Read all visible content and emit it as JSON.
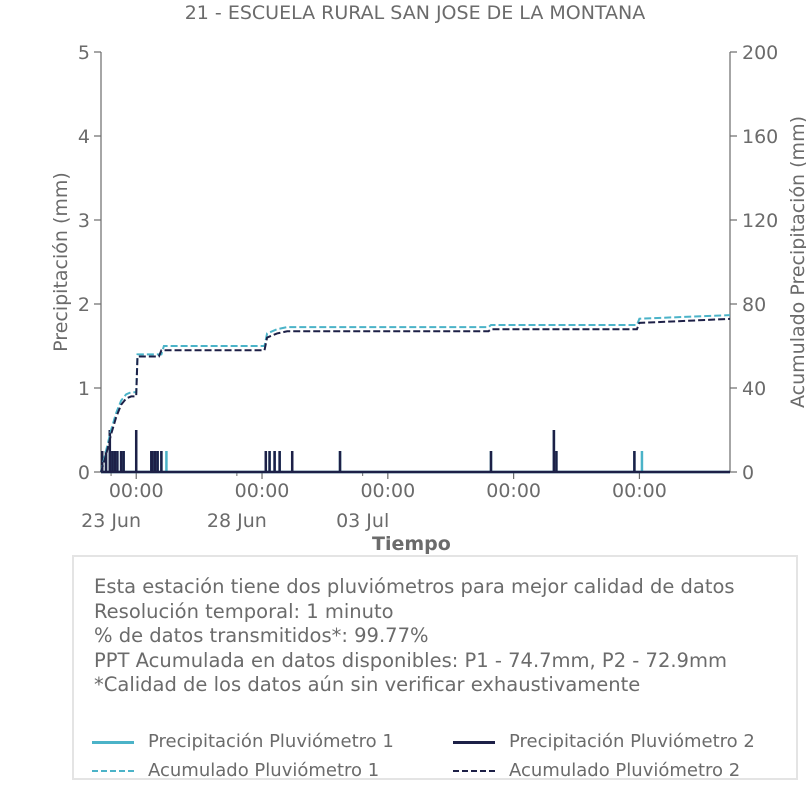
{
  "chart_data": {
    "type": "line",
    "title": "21 - ESCUELA RURAL SAN JOSE DE LA MONTANA",
    "xlabel": "Tiempo",
    "ylabel_left": "Precipitación (mm)",
    "ylabel_right": "Acumulado Precipitación (mm)",
    "x_range_days": [
      -1.4,
      23.6
    ],
    "y_left": {
      "lim": [
        0,
        5
      ],
      "ticks": [
        "0",
        "1",
        "2",
        "3",
        "4",
        "5"
      ]
    },
    "y_right": {
      "lim": [
        0,
        200
      ],
      "ticks": [
        "0",
        "40",
        "80",
        "120",
        "160",
        "200"
      ]
    },
    "x_major_ticks": [
      {
        "day": 0,
        "label": "00:00"
      },
      {
        "day": 5,
        "label": "00:00"
      },
      {
        "day": 10,
        "label": "00:00"
      },
      {
        "day": 15,
        "label": "00:00"
      },
      {
        "day": 20,
        "label": "00:00"
      }
    ],
    "x_date_labels": [
      {
        "day": -1,
        "label": "23 Jun"
      },
      {
        "day": 4,
        "label": "28 Jun"
      },
      {
        "day": 9,
        "label": "03 Jul"
      }
    ],
    "x_minor_ticks_days": [
      -1,
      4,
      9
    ],
    "series": [
      {
        "name": "Precipitación Pluviómetro 1",
        "color": "#4bb3c8",
        "style": "solid",
        "axis": "left",
        "x": [
          -1.35,
          -1.2,
          -1.05,
          -0.95,
          -0.85,
          -0.75,
          -0.6,
          -0.5,
          0.0,
          0.6,
          0.65,
          0.75,
          0.85,
          1.0,
          1.2,
          5.15,
          5.3,
          5.5,
          5.7,
          6.2,
          8.1,
          14.1,
          16.6,
          16.7,
          19.8,
          20.1
        ],
        "y": [
          0.25,
          0.25,
          0.5,
          0.25,
          0.25,
          0.25,
          0.25,
          0.25,
          0.5,
          0.25,
          0.25,
          0.25,
          0.25,
          0.25,
          0.25,
          0.25,
          0.25,
          0.25,
          0.25,
          0.25,
          0.25,
          0.25,
          0.5,
          0.25,
          0.25,
          0.25
        ]
      },
      {
        "name": "Precipitación Pluviómetro 2",
        "color": "#1d2047",
        "style": "solid",
        "axis": "left",
        "x": [
          -1.35,
          -1.2,
          -1.05,
          -0.95,
          -0.85,
          -0.75,
          -0.6,
          -0.5,
          0.0,
          0.6,
          0.65,
          0.75,
          0.85,
          1.0,
          5.15,
          5.3,
          5.5,
          5.7,
          6.2,
          8.1,
          14.1,
          16.6,
          16.7,
          19.8
        ],
        "y": [
          0.25,
          0.25,
          0.5,
          0.25,
          0.25,
          0.25,
          0.25,
          0.25,
          0.5,
          0.25,
          0.25,
          0.25,
          0.25,
          0.25,
          0.25,
          0.25,
          0.25,
          0.25,
          0.25,
          0.25,
          0.25,
          0.5,
          0.25,
          0.25
        ]
      },
      {
        "name": "Acumulado Pluviómetro 1",
        "color": "#4bb3c8",
        "style": "dashed",
        "axis": "right",
        "x": [
          -1.4,
          -1.2,
          -1.0,
          -0.8,
          -0.6,
          -0.4,
          -0.2,
          0.0,
          0.05,
          1.0,
          1.1,
          5.1,
          5.2,
          5.6,
          6.0,
          14.0,
          14.1,
          19.9,
          20.0,
          23.6
        ],
        "y": [
          0,
          10,
          20,
          28,
          34,
          37,
          38,
          38,
          56,
          56,
          60,
          60,
          66,
          68,
          69,
          69,
          70,
          70,
          73,
          74.7
        ]
      },
      {
        "name": "Acumulado Pluviómetro 2",
        "color": "#1d2047",
        "style": "dashed",
        "axis": "right",
        "x": [
          -1.4,
          -1.2,
          -1.0,
          -0.8,
          -0.6,
          -0.4,
          -0.2,
          0.0,
          0.05,
          0.9,
          1.0,
          5.1,
          5.2,
          5.6,
          6.0,
          14.0,
          14.1,
          19.9,
          20.0,
          23.6
        ],
        "y": [
          0,
          8,
          18,
          26,
          32,
          35,
          36,
          36,
          55,
          55,
          58,
          58,
          64,
          66,
          67,
          67,
          68,
          68,
          71,
          72.9
        ]
      }
    ],
    "legend_placement": "bottom, inside info box",
    "grid": false
  },
  "info": {
    "line1": "Esta estación tiene dos pluviómetros para mejor calidad de datos",
    "line2": "Resolución temporal: 1 minuto",
    "line3": "% de datos transmitidos*: 99.77%",
    "line4": "PPT Acumulada en datos disponibles: P1 - 74.7mm, P2 - 72.9mm",
    "line5": "*Calidad de los datos aún sin verificar exhaustivamente"
  },
  "legend": {
    "p1": "Precipitación Pluviómetro 1",
    "p2": "Precipitación Pluviómetro 2",
    "a1": "Acumulado Pluviómetro 1",
    "a2": "Acumulado Pluviómetro 2"
  }
}
